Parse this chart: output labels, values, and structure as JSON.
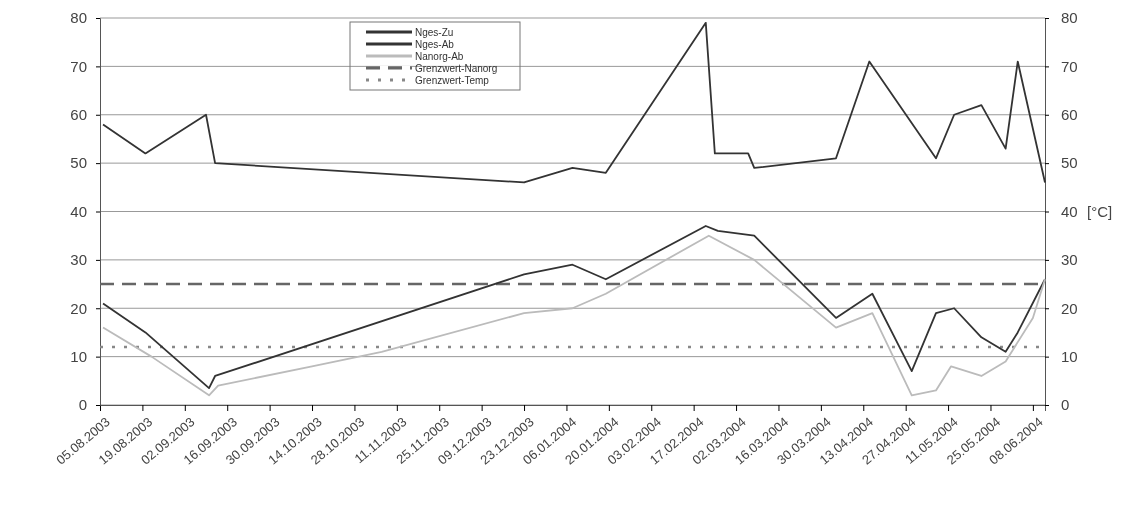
{
  "chart_data": {
    "type": "line",
    "xlim": [
      "2003-08-05",
      "2004-06-12"
    ],
    "xticks": [
      {
        "value": "2003-08-05",
        "label": "05.08.2003"
      },
      {
        "value": "2003-08-19",
        "label": "19.08.2003"
      },
      {
        "value": "2003-09-02",
        "label": "02.09.2003"
      },
      {
        "value": "2003-09-16",
        "label": "16.09.2003"
      },
      {
        "value": "2003-09-30",
        "label": "30.09.2003"
      },
      {
        "value": "2003-10-14",
        "label": "14.10.2003"
      },
      {
        "value": "2003-10-28",
        "label": "28.10.2003"
      },
      {
        "value": "2003-11-11",
        "label": "11.11.2003"
      },
      {
        "value": "2003-11-25",
        "label": "25.11.2003"
      },
      {
        "value": "2003-12-09",
        "label": "09.12.2003"
      },
      {
        "value": "2003-12-23",
        "label": "23.12.2003"
      },
      {
        "value": "2004-01-06",
        "label": "06.01.2004"
      },
      {
        "value": "2004-01-20",
        "label": "20.01.2004"
      },
      {
        "value": "2004-02-03",
        "label": "03.02.2004"
      },
      {
        "value": "2004-02-17",
        "label": "17.02.2004"
      },
      {
        "value": "2004-03-02",
        "label": "02.03.2004"
      },
      {
        "value": "2004-03-16",
        "label": "16.03.2004"
      },
      {
        "value": "2004-03-30",
        "label": "30.03.2004"
      },
      {
        "value": "2004-04-13",
        "label": "13.04.2004"
      },
      {
        "value": "2004-04-27",
        "label": "27.04.2004"
      },
      {
        "value": "2004-05-11",
        "label": "11.05.2004"
      },
      {
        "value": "2004-05-25",
        "label": "25.05.2004"
      },
      {
        "value": "2004-06-08",
        "label": "08.06.2004"
      }
    ],
    "ylim": [
      0,
      80
    ],
    "yticks": [
      0,
      10,
      20,
      30,
      40,
      50,
      60,
      70,
      80
    ],
    "y2lim": [
      0,
      80
    ],
    "y2ticks": [
      0,
      10,
      20,
      30,
      40,
      50,
      60,
      70,
      80
    ],
    "y2label": "[°C]",
    "grid": "y",
    "legend": "top",
    "series": [
      {
        "name": "Nges-Zu",
        "color": "#333333",
        "x": [
          "2003-08-06",
          "2003-08-20",
          "2003-09-09",
          "2003-09-12",
          "2003-12-23",
          "2004-01-08",
          "2004-01-19",
          "2004-02-21",
          "2004-02-24",
          "2004-03-06",
          "2004-03-08",
          "2004-04-04",
          "2004-04-15",
          "2004-05-07",
          "2004-05-13",
          "2004-05-22",
          "2004-05-30",
          "2004-06-03",
          "2004-06-12"
        ],
        "values": [
          58,
          52,
          60,
          50,
          46,
          49,
          48,
          79,
          52,
          52,
          49,
          51,
          71,
          51,
          60,
          62,
          53,
          71,
          46
        ]
      },
      {
        "name": "Nges-Ab",
        "color": "#333333",
        "x": [
          "2003-08-06",
          "2003-08-20",
          "2003-09-10",
          "2003-09-12",
          "2003-12-23",
          "2004-01-08",
          "2004-01-19",
          "2004-02-21",
          "2004-02-25",
          "2004-03-08",
          "2004-04-04",
          "2004-04-16",
          "2004-04-29",
          "2004-05-07",
          "2004-05-13",
          "2004-05-22",
          "2004-05-30",
          "2004-06-03",
          "2004-06-12"
        ],
        "values": [
          21,
          15,
          3.5,
          6,
          27,
          29,
          26,
          37,
          36,
          35,
          18,
          23,
          7,
          19,
          20,
          14,
          11,
          15,
          26
        ]
      },
      {
        "name": "Nanorg-Ab",
        "color": "#bbbbbb",
        "x": [
          "2003-08-06",
          "2003-08-22",
          "2003-09-10",
          "2003-09-13",
          "2003-10-14",
          "2003-11-06",
          "2003-12-23",
          "2004-01-08",
          "2004-01-19",
          "2004-02-22",
          "2004-03-08",
          "2004-04-04",
          "2004-04-16",
          "2004-04-29",
          "2004-05-07",
          "2004-05-12",
          "2004-05-22",
          "2004-05-30",
          "2004-06-08",
          "2004-06-12"
        ],
        "values": [
          16,
          10,
          2,
          4,
          8,
          11,
          19,
          20,
          23,
          35,
          30,
          16,
          19,
          2,
          3,
          8,
          6,
          9,
          18,
          26
        ]
      }
    ],
    "ref_lines": [
      {
        "axis": "y",
        "value": 25,
        "label": "Grenzwert-Nanorg",
        "color": "#666666",
        "line_style": "dashed"
      },
      {
        "axis": "y",
        "value": 12,
        "label": "Grenzwert-Temp",
        "color": "#888888",
        "line_style": "dotted"
      }
    ]
  }
}
